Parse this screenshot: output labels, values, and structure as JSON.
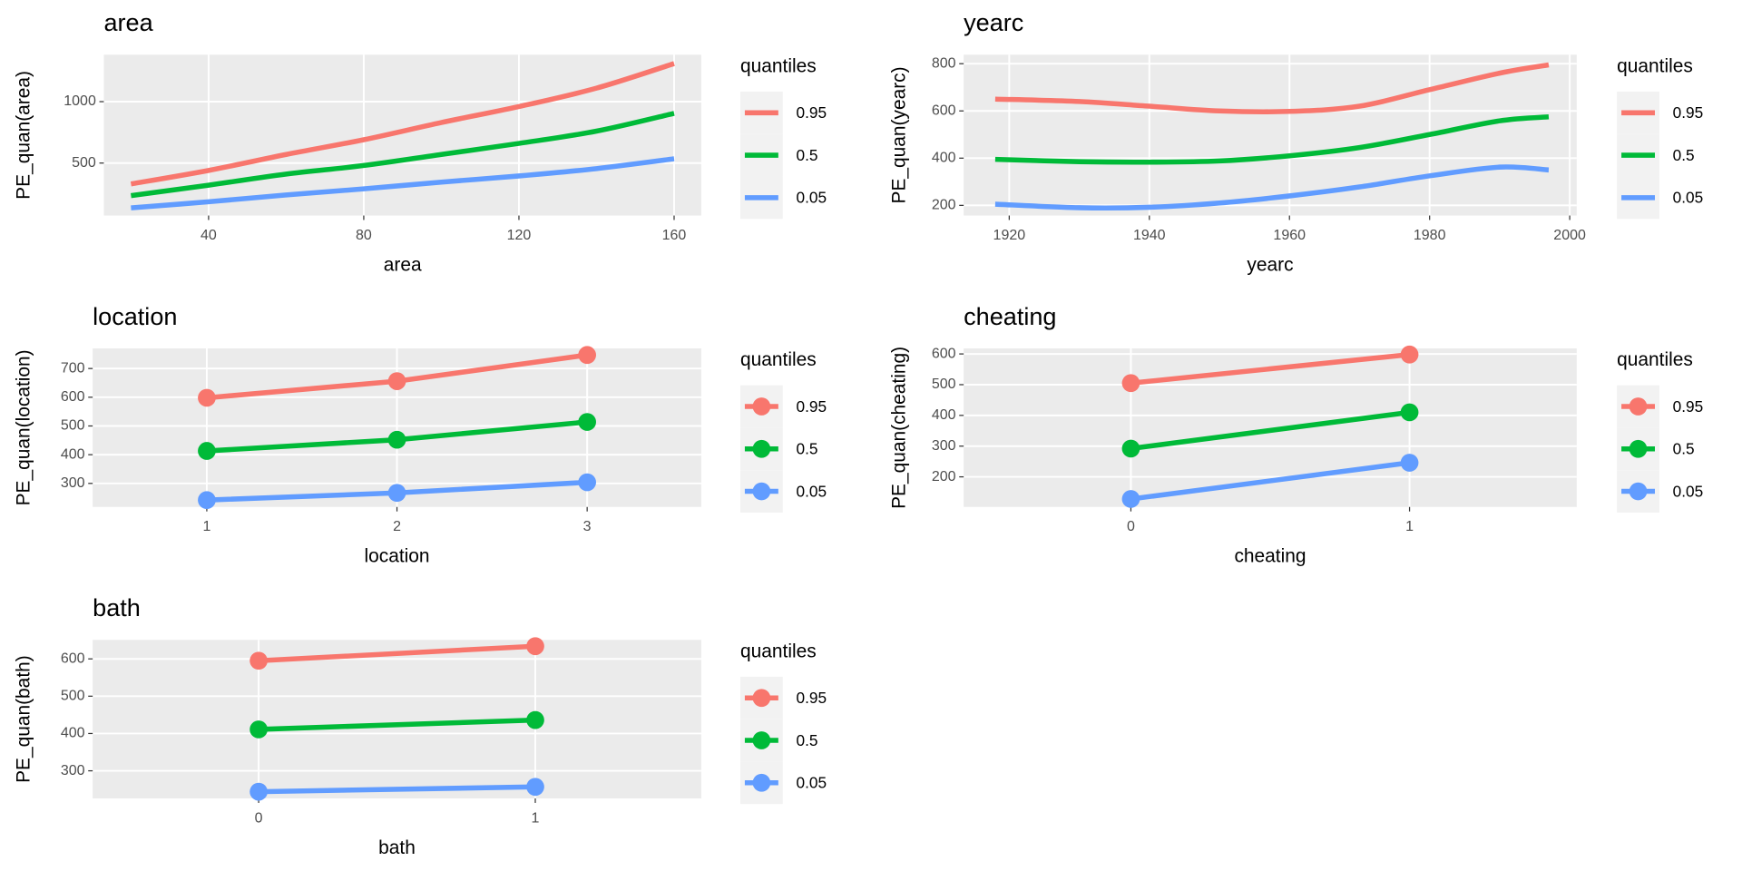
{
  "chart_data": [
    {
      "type": "line",
      "title": "area",
      "xlabel": "area",
      "ylabel": "PE_quan(area)",
      "x": [
        20,
        40,
        60,
        80,
        100,
        120,
        140,
        160
      ],
      "xlim": [
        13,
        167
      ],
      "xticks": [
        40,
        80,
        120,
        160
      ],
      "ylim": [
        73,
        1382
      ],
      "yticks": [
        500,
        1000
      ],
      "grid": true,
      "markers": false,
      "legend_title": "quantiles",
      "series": [
        {
          "name": "0.95",
          "color": "#F8766D",
          "values": [
            330,
            440,
            570,
            690,
            830,
            960,
            1110,
            1310
          ]
        },
        {
          "name": "0.5",
          "color": "#00BA38",
          "values": [
            235,
            320,
            410,
            480,
            570,
            660,
            760,
            905
          ]
        },
        {
          "name": "0.05",
          "color": "#619CFF",
          "values": [
            135,
            185,
            240,
            290,
            345,
            395,
            455,
            535
          ]
        }
      ]
    },
    {
      "type": "line",
      "title": "yearc",
      "xlabel": "yearc",
      "ylabel": "PE_quan(yearc)",
      "x": [
        1918,
        1930,
        1940,
        1950,
        1960,
        1970,
        1980,
        1990,
        1997
      ],
      "xlim": [
        1913.5,
        2001
      ],
      "xticks": [
        1920,
        1940,
        1960,
        1980,
        2000
      ],
      "ylim": [
        157,
        838
      ],
      "yticks": [
        200,
        400,
        600,
        800
      ],
      "grid": true,
      "markers": false,
      "legend_title": "quantiles",
      "series": [
        {
          "name": "0.95",
          "color": "#F8766D",
          "values": [
            650,
            640,
            620,
            600,
            598,
            620,
            690,
            760,
            795
          ]
        },
        {
          "name": "0.5",
          "color": "#00BA38",
          "values": [
            395,
            385,
            383,
            388,
            410,
            445,
            500,
            558,
            575
          ]
        },
        {
          "name": "0.05",
          "color": "#619CFF",
          "values": [
            205,
            190,
            192,
            210,
            240,
            278,
            325,
            362,
            350
          ]
        }
      ]
    },
    {
      "type": "line",
      "title": "location",
      "xlabel": "location",
      "ylabel": "PE_quan(location)",
      "categories": [
        "1",
        "2",
        "3"
      ],
      "ylim": [
        218,
        770
      ],
      "yticks": [
        300,
        400,
        500,
        600,
        700
      ],
      "grid": true,
      "markers": true,
      "legend_title": "quantiles",
      "series": [
        {
          "name": "0.95",
          "color": "#F8766D",
          "values": [
            598,
            656,
            747
          ]
        },
        {
          "name": "0.5",
          "color": "#00BA38",
          "values": [
            413,
            452,
            514
          ]
        },
        {
          "name": "0.05",
          "color": "#619CFF",
          "values": [
            242,
            267,
            304
          ]
        }
      ]
    },
    {
      "type": "line",
      "title": "cheating",
      "xlabel": "cheating",
      "ylabel": "PE_quan(cheating)",
      "categories": [
        "0",
        "1"
      ],
      "ylim": [
        102,
        618
      ],
      "yticks": [
        200,
        300,
        400,
        500,
        600
      ],
      "grid": true,
      "markers": true,
      "legend_title": "quantiles",
      "series": [
        {
          "name": "0.95",
          "color": "#F8766D",
          "values": [
            505,
            598
          ]
        },
        {
          "name": "0.5",
          "color": "#00BA38",
          "values": [
            292,
            410
          ]
        },
        {
          "name": "0.05",
          "color": "#619CFF",
          "values": [
            128,
            246
          ]
        }
      ]
    },
    {
      "type": "line",
      "title": "bath",
      "xlabel": "bath",
      "ylabel": "PE_quan(bath)",
      "categories": [
        "0",
        "1"
      ],
      "ylim": [
        226,
        651
      ],
      "yticks": [
        300,
        400,
        500,
        600
      ],
      "grid": true,
      "markers": true,
      "legend_title": "quantiles",
      "series": [
        {
          "name": "0.95",
          "color": "#F8766D",
          "values": [
            595,
            634
          ]
        },
        {
          "name": "0.5",
          "color": "#00BA38",
          "values": [
            411,
            436
          ]
        },
        {
          "name": "0.05",
          "color": "#619CFF",
          "values": [
            244,
            257
          ]
        }
      ]
    }
  ]
}
